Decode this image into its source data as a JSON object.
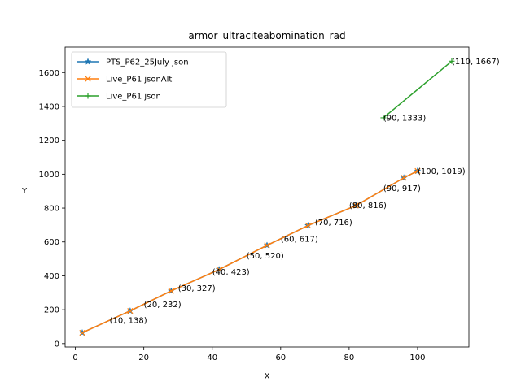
{
  "chart_data": {
    "type": "line",
    "title": "armor_ultraciteabomination_rad",
    "xlabel": "X",
    "ylabel": "Y",
    "xlim": [
      -3,
      115
    ],
    "ylim": [
      -20,
      1750
    ],
    "xticks": [
      0,
      20,
      40,
      60,
      80,
      100
    ],
    "yticks": [
      0,
      200,
      400,
      600,
      800,
      1000,
      1200,
      1400,
      1600
    ],
    "legend_position": "top-left",
    "grid": false,
    "series": [
      {
        "name": "PTS_P62_25July json",
        "color": "#1f77b4",
        "marker": "star",
        "x": [
          2,
          16,
          28,
          42,
          56,
          68,
          82,
          96,
          100
        ],
        "y": [
          64,
          193,
          311,
          437,
          580,
          697,
          815,
          979,
          1019
        ]
      },
      {
        "name": "Live_P61 jsonAlt",
        "color": "#ff7f0e",
        "marker": "x",
        "x": [
          2,
          16,
          28,
          42,
          56,
          68,
          82,
          96,
          100
        ],
        "y": [
          64,
          193,
          311,
          437,
          580,
          697,
          815,
          979,
          1019
        ]
      },
      {
        "name": "Live_P61 json",
        "color": "#2ca02c",
        "marker": "plus",
        "x": [
          90,
          110
        ],
        "y": [
          1333,
          1667
        ]
      }
    ],
    "annotations": [
      {
        "text": "(10, 138)",
        "x": 10,
        "y": 138
      },
      {
        "text": "(20, 232)",
        "x": 20,
        "y": 232
      },
      {
        "text": "(30, 327)",
        "x": 30,
        "y": 327
      },
      {
        "text": "(40, 423)",
        "x": 40,
        "y": 423
      },
      {
        "text": "(50, 520)",
        "x": 50,
        "y": 520
      },
      {
        "text": "(60, 617)",
        "x": 60,
        "y": 617
      },
      {
        "text": "(70, 716)",
        "x": 70,
        "y": 716
      },
      {
        "text": "(80, 816)",
        "x": 80,
        "y": 816
      },
      {
        "text": "(90, 917)",
        "x": 90,
        "y": 917
      },
      {
        "text": "(100, 1019)",
        "x": 100,
        "y": 1019
      },
      {
        "text": "(90, 1333)",
        "x": 90,
        "y": 1333
      },
      {
        "text": "(110, 1667)",
        "x": 110,
        "y": 1667
      }
    ]
  }
}
